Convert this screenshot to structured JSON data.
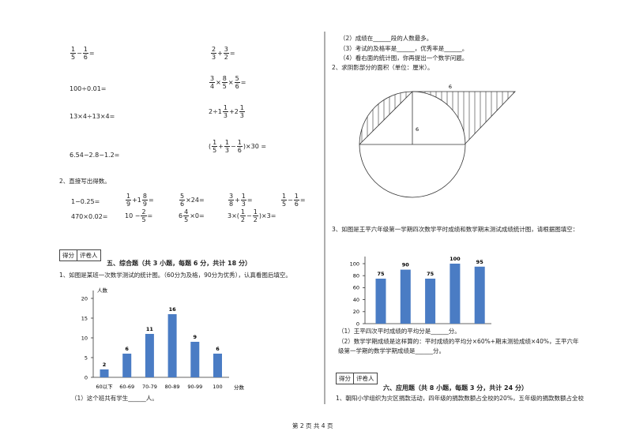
{
  "left": {
    "calc": [
      [
        {
          "n": "1",
          "d": "5"
        },
        "−",
        {
          "n": "1",
          "d": "6"
        },
        "="
      ],
      [
        {
          "n": "2",
          "d": "3"
        },
        "+",
        {
          "n": "3",
          "d": "2"
        },
        "="
      ],
      [
        "100÷0.01="
      ],
      [
        {
          "n": "3",
          "d": "4"
        },
        "×",
        {
          "n": "8",
          "d": "5"
        },
        "×",
        {
          "n": "5",
          "d": "6"
        },
        "="
      ],
      [
        "13×4÷13×4="
      ],
      [
        "2÷",
        {
          "w": "1",
          "n": "1",
          "d": "3"
        },
        "+",
        {
          "w": "2",
          "n": "1",
          "d": "3"
        }
      ],
      [
        "6.54−2.8−1.2="
      ],
      [
        "(",
        {
          "n": "1",
          "d": "5"
        },
        "+",
        {
          "n": "1",
          "d": "3"
        },
        "−",
        {
          "n": "1",
          "d": "6"
        },
        ")×30 ="
      ]
    ],
    "q2_title": "2、直接写出得数。",
    "q2_items": [
      [
        "1−0.25="
      ],
      [
        {
          "n": "1",
          "d": "9"
        },
        "+",
        {
          "w": "1",
          "n": "8",
          "d": "9"
        },
        "="
      ],
      [
        {
          "n": "5",
          "d": "6"
        },
        "×24="
      ],
      [
        {
          "n": "3",
          "d": "8"
        },
        "+",
        {
          "n": "1",
          "d": "3"
        },
        "="
      ],
      [
        {
          "n": "1",
          "d": "5"
        },
        "−",
        {
          "n": "1",
          "d": "6"
        },
        "="
      ],
      [
        "470×0.02="
      ],
      [
        "10 −",
        {
          "n": "2",
          "d": "5"
        },
        "="
      ],
      [
        {
          "w": "6",
          "n": "4",
          "d": "5"
        },
        "×0="
      ],
      [
        "3×(",
        {
          "n": "1",
          "d": "2"
        },
        "−",
        {
          "n": "1",
          "d": "2"
        },
        ")×3="
      ]
    ],
    "score_box": [
      "得分",
      "评卷人"
    ],
    "section5": "五、综合题（共 3 小题，每题 6 分，共计 18 分）",
    "q5_1": "1、如图是某班一次数学测试的统计图。（60分为及格，90分为优秀），认真看图后填空。",
    "chart1": {
      "type": "bar",
      "y_label": "人数",
      "x_label": "分数",
      "categories": [
        "60以下",
        "60-69",
        "70-79",
        "80-89",
        "90-99",
        "100"
      ],
      "values": [
        2,
        6,
        11,
        16,
        9,
        6
      ],
      "color": "#4a7cc4",
      "ylim": [
        0,
        20
      ],
      "yticks": [
        0,
        5,
        10,
        15,
        20
      ]
    },
    "q5_1_sub1": "（1）这个班共有学生______人。"
  },
  "right": {
    "q5_1_sub": [
      "（2）成绩在______段的人数最多。",
      "（3）考试的及格率是______，优秀率是______。",
      "（4）看右面的统计图，你再提出一个数学问题。"
    ],
    "q5_2": "2、求阴影部分的面积（单位：厘米）。",
    "diagram_labels": [
      "6",
      "6"
    ],
    "q5_3": "3、如图是王平六年级第一学期四次数学平时成绩和数学期末测试成绩统计图，请根据图填空：",
    "chart2": {
      "type": "bar",
      "categories": [
        null,
        null,
        null,
        null,
        null
      ],
      "values": [
        75,
        90,
        75,
        100,
        95
      ],
      "color": "#4a7cc4",
      "ylim": [
        0,
        100
      ],
      "yticks": [
        0,
        20,
        40,
        60,
        80,
        100
      ]
    },
    "q5_3_sub": [
      "（1）王平四次平时成绩的平均分是______分。",
      "（2）数学学期成绩是这样算的：平时成绩的平均分×60%+期末测验成绩×40%，王平六年",
      "级第一学期的数学学期成绩是______分。"
    ],
    "score_box": [
      "得分",
      "评卷人"
    ],
    "section6": "六、应用题（共 8 小题，每题 3 分，共计 24 分）",
    "q6_1": "1、朝阳小学组织为灾区捐款活动，四年级的捐款数额占全校的20%，五年级的捐款数额占全校"
  },
  "footer": "第 2 页 共 4 页"
}
